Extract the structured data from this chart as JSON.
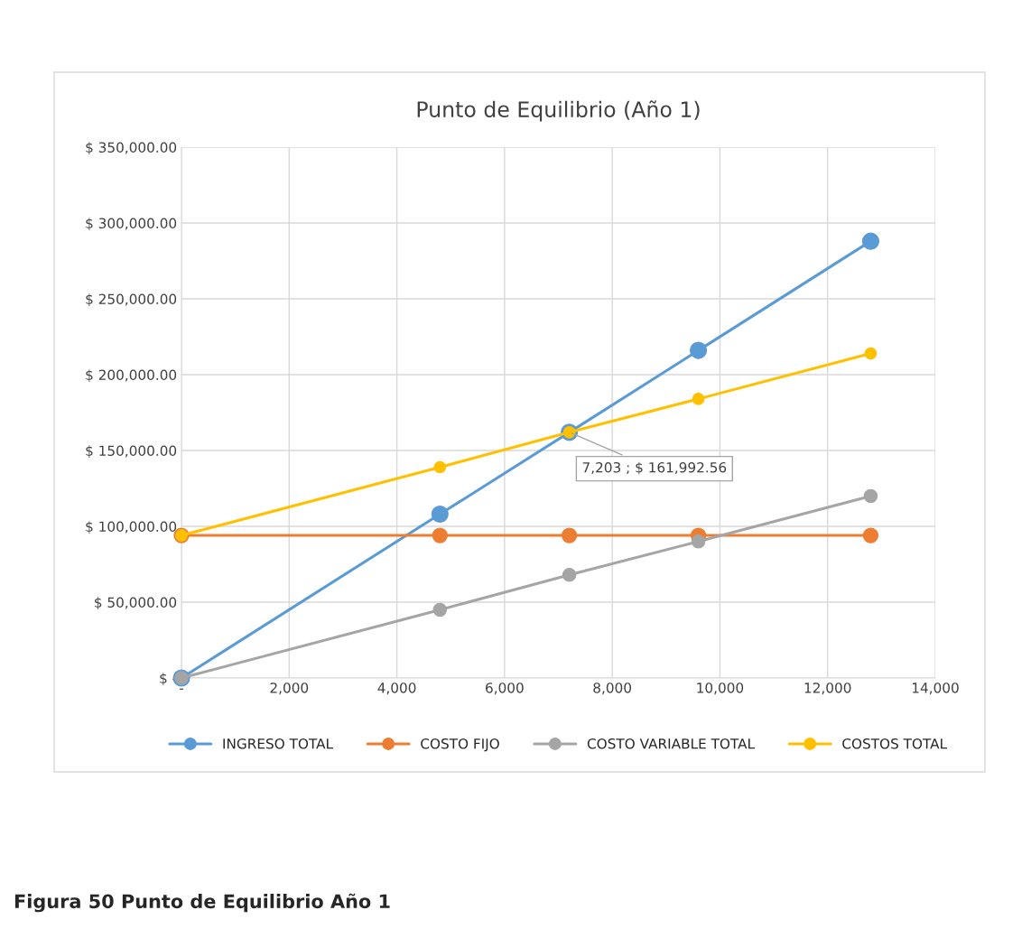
{
  "chart_data": {
    "type": "line",
    "title": "Punto de Equilibrio (Año 1)",
    "x": [
      0,
      4800,
      7203,
      9600,
      12800
    ],
    "series": [
      {
        "name": "INGRESO TOTAL",
        "color": "#5b9bd5",
        "values": [
          0,
          108000,
          162000,
          216000,
          288000
        ]
      },
      {
        "name": "COSTO FIJO",
        "color": "#ed7d31",
        "values": [
          94000,
          94000,
          94000,
          94000,
          94000
        ]
      },
      {
        "name": "COSTO VARIABLE TOTAL",
        "color": "#a5a5a5",
        "values": [
          0,
          45000,
          68000,
          90000,
          120000
        ]
      },
      {
        "name": "COSTOS TOTAL",
        "color": "#ffc000",
        "values": [
          94000,
          139000,
          162000,
          184000,
          214000
        ]
      }
    ],
    "xlim": [
      0,
      14000
    ],
    "xticks": [
      {
        "value": 0,
        "label": "-"
      },
      {
        "value": 2000,
        "label": "2,000"
      },
      {
        "value": 4000,
        "label": "4,000"
      },
      {
        "value": 6000,
        "label": "6,000"
      },
      {
        "value": 8000,
        "label": "8,000"
      },
      {
        "value": 10000,
        "label": "10,000"
      },
      {
        "value": 12000,
        "label": "12,000"
      },
      {
        "value": 14000,
        "label": "14,000"
      }
    ],
    "ylim": [
      0,
      350000
    ],
    "yticks": [
      {
        "value": 0,
        "label": "$ -"
      },
      {
        "value": 50000,
        "label": "$ 50,000.00"
      },
      {
        "value": 100000,
        "label": "$ 100,000.00"
      },
      {
        "value": 150000,
        "label": "$ 150,000.00"
      },
      {
        "value": 200000,
        "label": "$ 200,000.00"
      },
      {
        "value": 250000,
        "label": "$ 250,000.00"
      },
      {
        "value": 300000,
        "label": "$ 300,000.00"
      },
      {
        "value": 350000,
        "label": "$ 350,000.00"
      }
    ],
    "grid": true,
    "legend": "bottom",
    "marker": "circle",
    "line_style": "solid",
    "annotations": [
      {
        "text": "7,203 ; $ 161,992.56",
        "x": 7203,
        "y": 161992.56
      },
      "Figura 50 Punto de Equilibrio Año 1"
    ]
  }
}
